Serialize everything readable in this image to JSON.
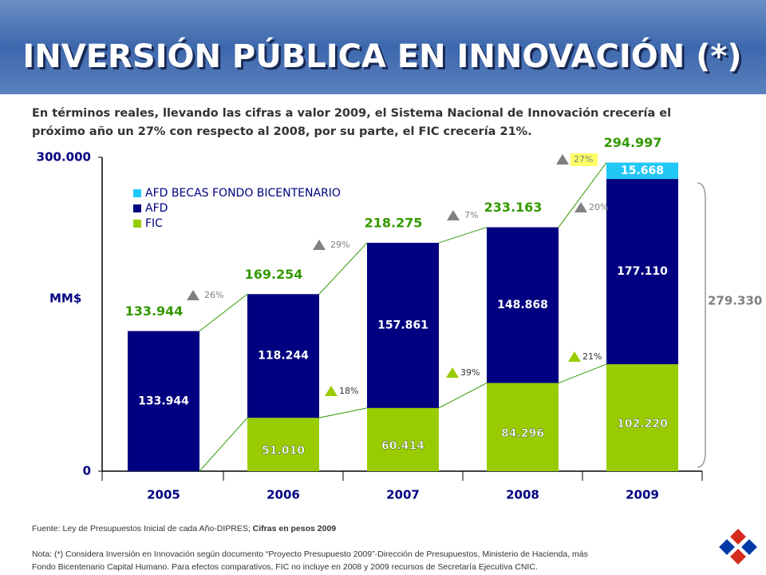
{
  "chart_data": {
    "type": "stacked_bar",
    "title": "INVERSIÓN PÚBLICA EN INNOVACIÓN (*)",
    "subtitle": [
      "En términos reales, llevando las cifras a valor 2009, el Sistema Nacional de Innovación crecería el",
      "próximo año un 27% con respecto al 2008, por su parte, el FIC crecería 21%."
    ],
    "ylabel": "MM$",
    "categories": [
      "2005",
      "2006",
      "2007",
      "2008",
      "2009"
    ],
    "series": [
      {
        "name": "FIC",
        "color": "#99cc00",
        "values": [
          null,
          51010,
          60414,
          84296,
          102220
        ],
        "value_labels": [
          null,
          "51.010",
          "60.414",
          "84.296",
          "102.220"
        ]
      },
      {
        "name": "AFD",
        "color": "#000080",
        "values": [
          133944,
          118244,
          157861,
          148868,
          177110
        ],
        "value_labels": [
          "133.944",
          "118.244",
          "157.861",
          "148.868",
          "177.110"
        ]
      },
      {
        "name": "AFD BECAS FONDO BICENTENARIO",
        "color": "#22c8f5",
        "values": [
          null,
          null,
          null,
          null,
          15668
        ],
        "value_labels": [
          null,
          null,
          null,
          null,
          "15.668"
        ]
      }
    ],
    "totals": {
      "values": [
        133944,
        169254,
        218275,
        233163,
        294997
      ],
      "value_labels": [
        "133.944",
        "169.254",
        "218.275",
        "233.163",
        "294.997"
      ]
    },
    "total_growth": [
      "26%",
      "29%",
      "7%",
      "27%"
    ],
    "fic_growth": [
      "18%",
      "39%",
      "21%"
    ],
    "afd_growth": "20%",
    "bracket": {
      "value": 279330,
      "label": "279.330"
    },
    "ylim": [
      0,
      300000
    ],
    "yticks": [
      0,
      {
        "value": 300000,
        "label": "300.000"
      }
    ],
    "footer": {
      "source": "Fuente:  Ley de Presupuestos Inicial de cada Año-DIPRES; ",
      "source_bold": "Cifras en pesos 2009",
      "note": [
        "Nota: (*) Considera Inversión en Innovación según documento “Proyecto Presupuesto 2009”-Dirección de Presupuestos, Ministerio de Hacienda, más",
        "Fondo Bicentenario Capital Humano.   Para efectos comparativos, FIC no incluye en 2008 y 2009 recursos de Secretaría Ejecutiva CNIC."
      ]
    }
  }
}
